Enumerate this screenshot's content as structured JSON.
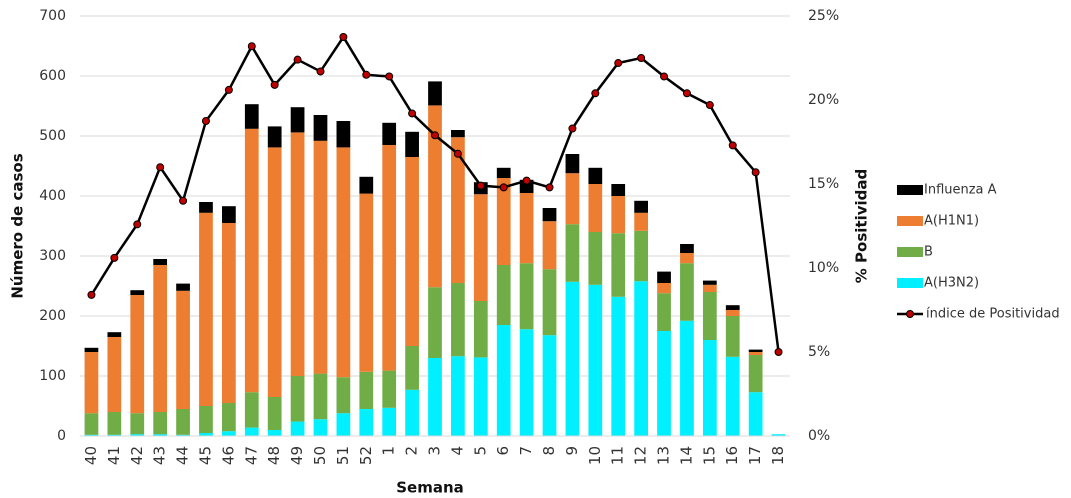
{
  "chart_data": {
    "type": "bar",
    "stacked": true,
    "x_label": "Semana",
    "y_label": "Número de casos",
    "y2_label": "% Positividad",
    "categories": [
      "40",
      "41",
      "42",
      "43",
      "44",
      "45",
      "46",
      "47",
      "48",
      "49",
      "50",
      "51",
      "52",
      "1",
      "2",
      "3",
      "4",
      "5",
      "6",
      "7",
      "8",
      "9",
      "10",
      "11",
      "12",
      "13",
      "14",
      "15",
      "16",
      "17",
      "18"
    ],
    "series": [
      {
        "name": "Influenza A",
        "type": "bar",
        "color": "#000000",
        "values": [
          7,
          8,
          8,
          10,
          12,
          18,
          28,
          41,
          35,
          42,
          43,
          44,
          28,
          37,
          42,
          40,
          12,
          20,
          17,
          22,
          22,
          32,
          27,
          20,
          20,
          19,
          15,
          7,
          8,
          4,
          0
        ]
      },
      {
        "name": "A(H1N1)",
        "type": "bar",
        "color": "#ed7d31",
        "values": [
          102,
          125,
          197,
          245,
          197,
          322,
          300,
          439,
          416,
          406,
          388,
          383,
          297,
          376,
          315,
          303,
          243,
          178,
          145,
          117,
          80,
          85,
          80,
          62,
          30,
          17,
          17,
          12,
          10,
          5,
          0
        ]
      },
      {
        "name": "B",
        "type": "bar",
        "color": "#70ad47",
        "values": [
          36,
          38,
          35,
          37,
          43,
          45,
          47,
          59,
          55,
          76,
          76,
          60,
          62,
          62,
          73,
          118,
          122,
          94,
          100,
          110,
          110,
          96,
          88,
          106,
          84,
          63,
          96,
          80,
          68,
          62,
          0
        ]
      },
      {
        "name": "A(H3N2)",
        "type": "bar",
        "color": "#00f0ff",
        "values": [
          2,
          2,
          3,
          3,
          2,
          5,
          8,
          14,
          10,
          24,
          28,
          38,
          45,
          47,
          77,
          130,
          133,
          131,
          185,
          178,
          168,
          257,
          252,
          232,
          258,
          175,
          192,
          160,
          132,
          73,
          3
        ]
      },
      {
        "name": "índice de Positividad",
        "type": "line",
        "axis": "y2",
        "color": "#000000",
        "marker_color": "#c00000",
        "values": [
          8.4,
          10.6,
          12.6,
          16.0,
          14.0,
          18.75,
          20.6,
          23.2,
          20.9,
          22.4,
          21.7,
          23.75,
          21.5,
          21.4,
          19.2,
          17.9,
          16.8,
          14.9,
          14.8,
          15.2,
          14.8,
          18.3,
          20.4,
          22.2,
          22.5,
          21.4,
          20.4,
          19.7,
          17.3,
          15.7,
          5.0
        ]
      }
    ],
    "ylim": [
      0,
      700
    ],
    "yticks": [
      0,
      100,
      200,
      300,
      400,
      500,
      600,
      700
    ],
    "y2lim": [
      0,
      25
    ],
    "y2ticks": [
      {
        "value": 0,
        "label": "0%"
      },
      {
        "value": 5,
        "label": "5%"
      },
      {
        "value": 10,
        "label": "10%"
      },
      {
        "value": 15,
        "label": "15%"
      },
      {
        "value": 20,
        "label": "20%"
      },
      {
        "value": 25,
        "label": "25%"
      }
    ],
    "grid": true,
    "legend": "right"
  }
}
